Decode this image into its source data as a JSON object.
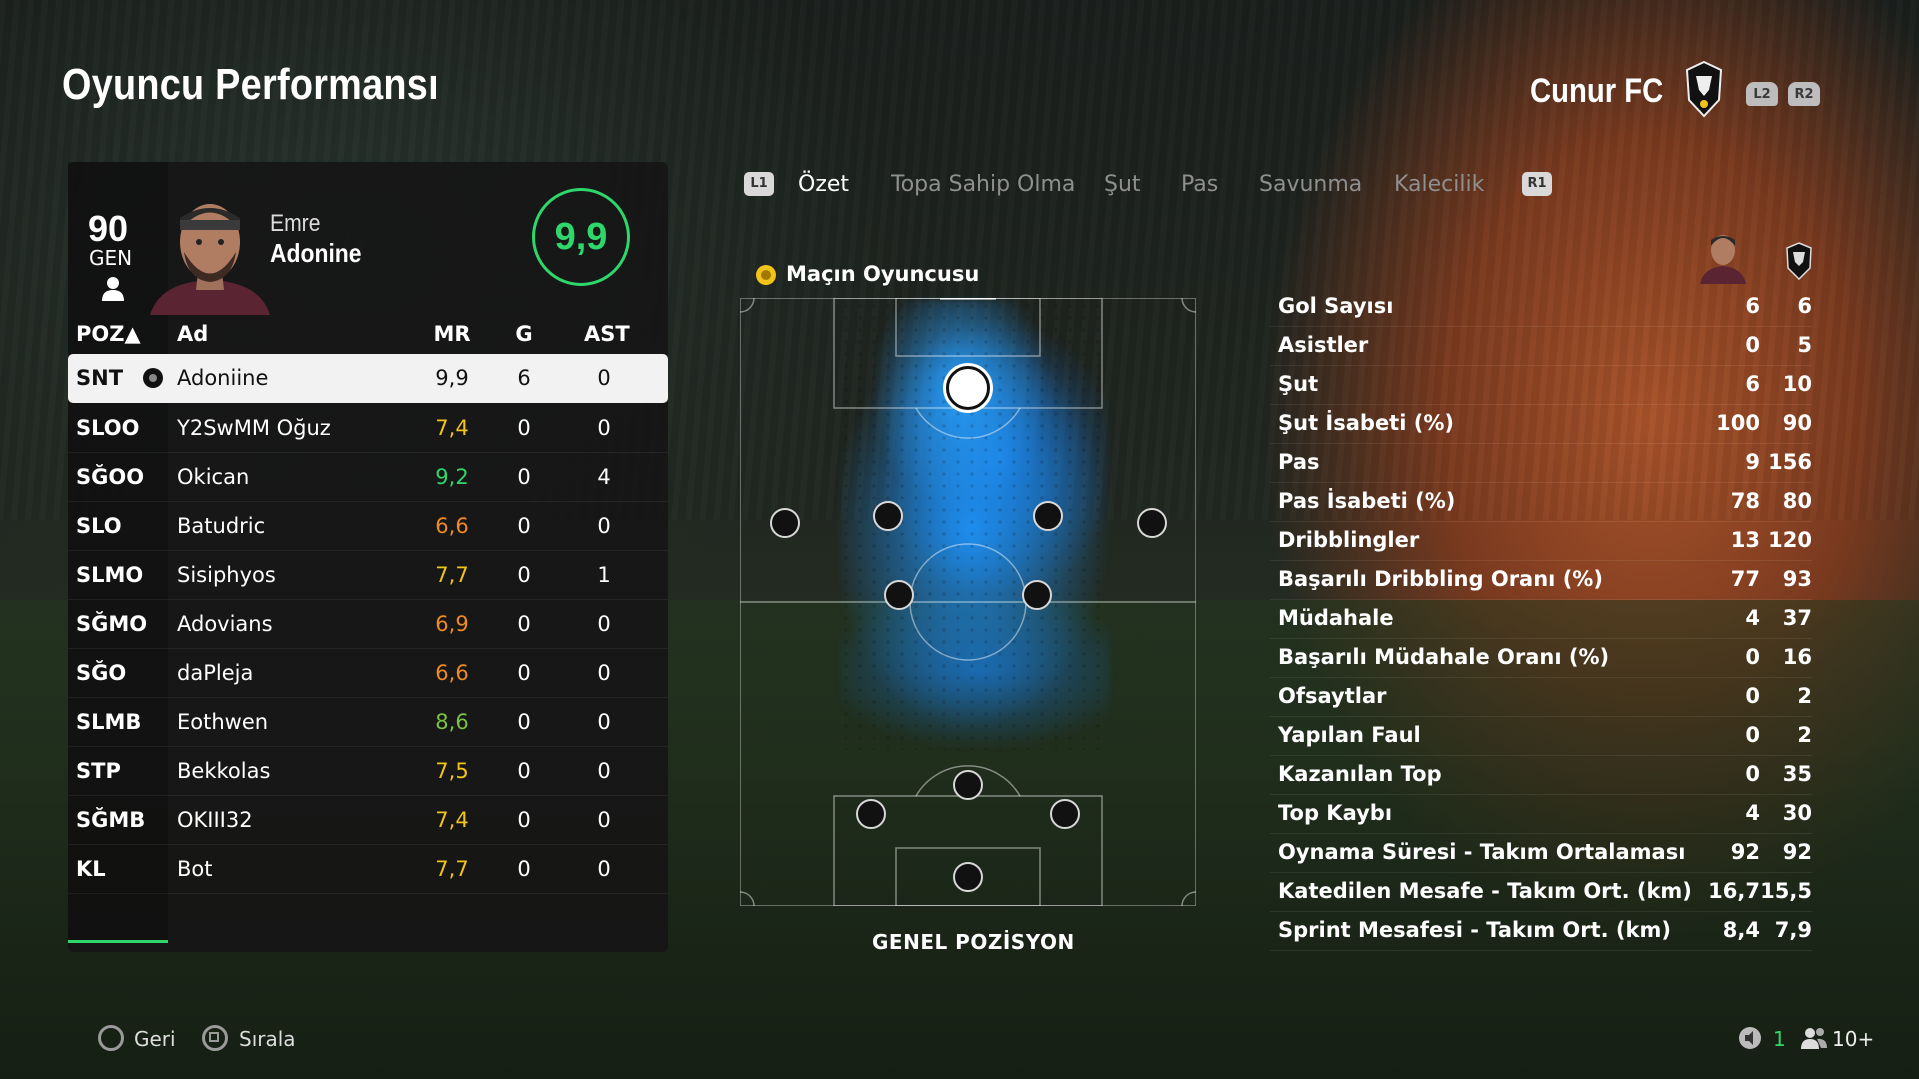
{
  "header": {
    "title": "Oyuncu Performansı",
    "team": "Cunur FC",
    "l2": "L2",
    "r2": "R2"
  },
  "player": {
    "gen_value": "90",
    "gen_label": "GEN",
    "first_name": "Emre",
    "last_name": "Adonine",
    "rating": "9,9"
  },
  "table": {
    "headers": {
      "pos": "POZ▲",
      "name": "Ad",
      "mr": "MR",
      "g": "G",
      "ast": "AST"
    },
    "rows": [
      {
        "pos": "SNT",
        "name": "Adoniine",
        "mr": "9,9",
        "g": "6",
        "ast": "0",
        "mr_color": "#111111"
      },
      {
        "pos": "SLOO",
        "name": "Y2SwMM Oğuz",
        "mr": "7,4",
        "g": "0",
        "ast": "0",
        "mr_color": "#f2c318"
      },
      {
        "pos": "SĞOO",
        "name": "Okican",
        "mr": "9,2",
        "g": "0",
        "ast": "4",
        "mr_color": "#2fd76b"
      },
      {
        "pos": "SLO",
        "name": "Batudric",
        "mr": "6,6",
        "g": "0",
        "ast": "0",
        "mr_color": "#f08a24"
      },
      {
        "pos": "SLMO",
        "name": "Sisiphyos",
        "mr": "7,7",
        "g": "0",
        "ast": "1",
        "mr_color": "#f2c318"
      },
      {
        "pos": "SĞMO",
        "name": "Adovians",
        "mr": "6,9",
        "g": "0",
        "ast": "0",
        "mr_color": "#f08a24"
      },
      {
        "pos": "SĞO",
        "name": "daPleja",
        "mr": "6,6",
        "g": "0",
        "ast": "0",
        "mr_color": "#f08a24"
      },
      {
        "pos": "SLMB",
        "name": "Eothwen",
        "mr": "8,6",
        "g": "0",
        "ast": "0",
        "mr_color": "#7bc142"
      },
      {
        "pos": "STP",
        "name": "Bekkolas",
        "mr": "7,5",
        "g": "0",
        "ast": "0",
        "mr_color": "#f2c318"
      },
      {
        "pos": "SĞMB",
        "name": "OKIII32",
        "mr": "7,4",
        "g": "0",
        "ast": "0",
        "mr_color": "#f2c318"
      },
      {
        "pos": "KL",
        "name": "Bot",
        "mr": "7,7",
        "g": "0",
        "ast": "0",
        "mr_color": "#f2c318"
      }
    ]
  },
  "tabs": {
    "l1": "L1",
    "r1": "R1",
    "items": [
      "Özet",
      "Topa Sahip Olma",
      "Şut",
      "Pas",
      "Savunma",
      "Kalecilik"
    ],
    "active": "Özet"
  },
  "pitch": {
    "motm_label": "Maçın Oyuncusu",
    "label": "GENEL POZİSYON"
  },
  "stats": [
    {
      "label": "Gol Sayısı",
      "player": "6",
      "team": "6"
    },
    {
      "label": "Asistler",
      "player": "0",
      "team": "5"
    },
    {
      "label": "Şut",
      "player": "6",
      "team": "10"
    },
    {
      "label": "Şut İsabeti (%)",
      "player": "100",
      "team": "90"
    },
    {
      "label": "Pas",
      "player": "9",
      "team": "156"
    },
    {
      "label": "Pas İsabeti (%)",
      "player": "78",
      "team": "80"
    },
    {
      "label": "Dribblingler",
      "player": "13",
      "team": "120"
    },
    {
      "label": "Başarılı Dribbling Oranı (%)",
      "player": "77",
      "team": "93"
    },
    {
      "label": "Müdahale",
      "player": "4",
      "team": "37"
    },
    {
      "label": "Başarılı Müdahale Oranı (%)",
      "player": "0",
      "team": "16"
    },
    {
      "label": "Ofsaytlar",
      "player": "0",
      "team": "2"
    },
    {
      "label": "Yapılan Faul",
      "player": "0",
      "team": "2"
    },
    {
      "label": "Kazanılan Top",
      "player": "0",
      "team": "35"
    },
    {
      "label": "Top Kaybı",
      "player": "4",
      "team": "30"
    },
    {
      "label": "Oynama Süresi - Takım Ortalaması",
      "player": "92",
      "team": "92"
    },
    {
      "label": "Katedilen Mesafe - Takım Ort. (km)",
      "player": "16,7",
      "team": "15,5"
    },
    {
      "label": "Sprint Mesafesi - Takım Ort. (km)",
      "player": "8,4",
      "team": "7,9"
    }
  ],
  "footer": {
    "back": "Geri",
    "sort": "Sırala",
    "count": "1",
    "party": "10+"
  },
  "colors": {
    "accent": "#2fd76b",
    "heatmap": "#2ea0ff"
  }
}
